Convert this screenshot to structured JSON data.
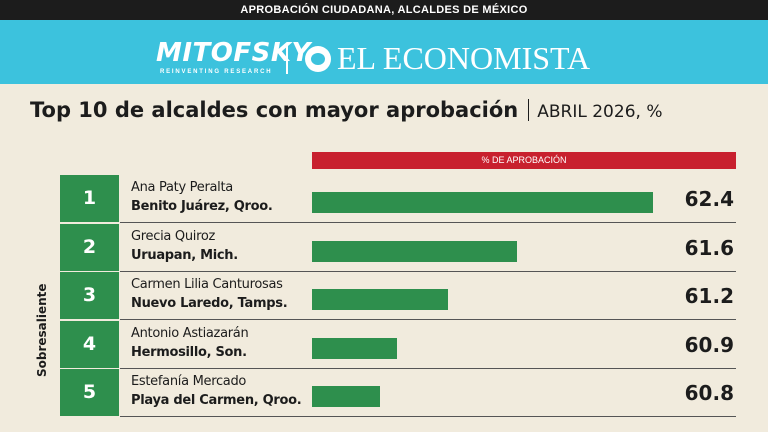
{
  "topbar": {
    "text": "APROBACIÓN CIUDADANA, ALCALDES DE MÉXICO"
  },
  "logos": {
    "mitofsky": "MITOFSKY",
    "mitofsky_tagline": "REINVENTING RESEARCH",
    "economista": "EL ECONOMISTA"
  },
  "colors": {
    "header_bg": "#3cc2dd",
    "bar": "#2e8f4d",
    "header_strip": "#c8202e",
    "background": "#f1ebdd"
  },
  "chart_data": {
    "type": "bar",
    "orientation": "horizontal",
    "title": "Top 10 de alcaldes con mayor aprobación",
    "subtitle": "ABRIL 2026, %",
    "column_header": "% DE APROBACIÓN",
    "group_label": "Sobresaliente",
    "xlim": [
      60.4,
      62.5
    ],
    "rows": [
      {
        "rank": "1",
        "name": "Ana Paty Peralta",
        "place": "Benito Juárez, Qroo.",
        "value": 62.4
      },
      {
        "rank": "2",
        "name": "Grecia Quiroz",
        "place": "Uruapan, Mich.",
        "value": 61.6
      },
      {
        "rank": "3",
        "name": "Carmen Lilia Canturosas",
        "place": "Nuevo Laredo, Tamps.",
        "value": 61.2
      },
      {
        "rank": "4",
        "name": "Antonio Astiazarán",
        "place": "Hermosillo, Son.",
        "value": 60.9
      },
      {
        "rank": "5",
        "name": "Estefanía Mercado",
        "place": "Playa del Carmen, Qroo.",
        "value": 60.8
      }
    ]
  }
}
